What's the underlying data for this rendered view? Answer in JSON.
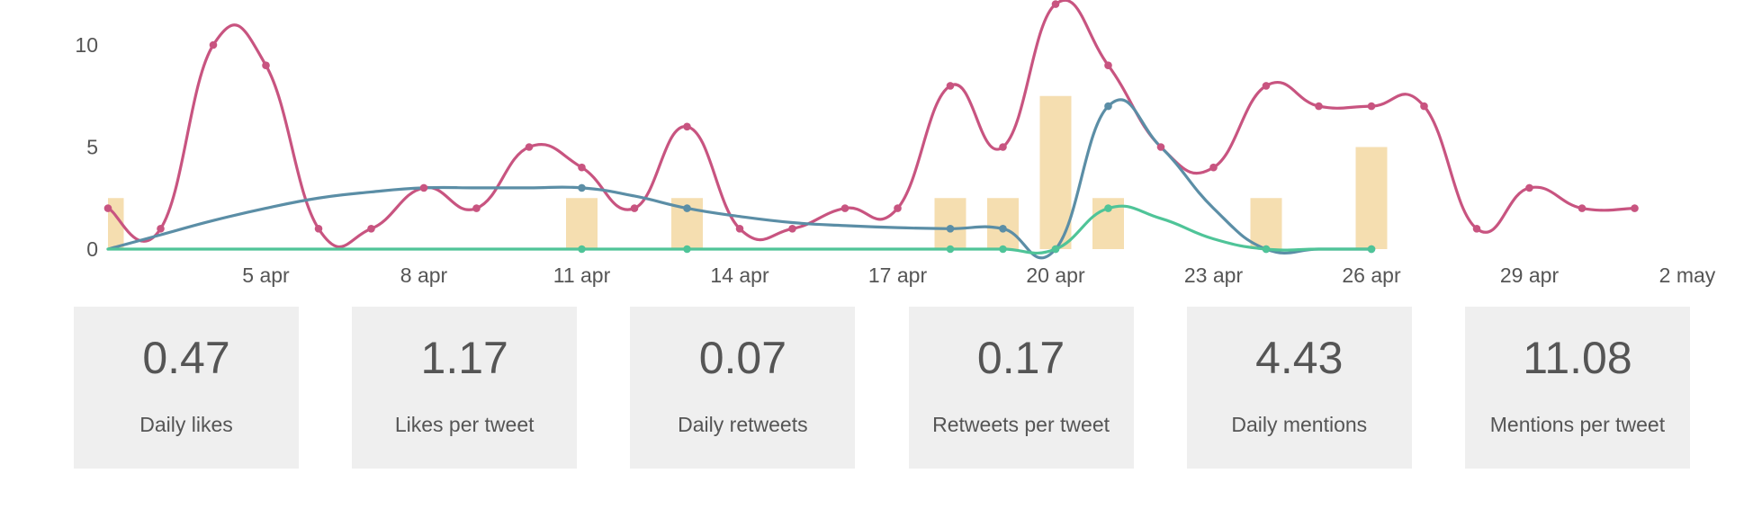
{
  "chart_data": {
    "type": "line",
    "x": [
      "2 apr",
      "3 apr",
      "4 apr",
      "5 apr",
      "6 apr",
      "7 apr",
      "8 apr",
      "9 apr",
      "10 apr",
      "11 apr",
      "12 apr",
      "13 apr",
      "14 apr",
      "15 apr",
      "16 apr",
      "17 apr",
      "18 apr",
      "19 apr",
      "20 apr",
      "21 apr",
      "22 apr",
      "23 apr",
      "24 apr",
      "25 apr",
      "26 apr",
      "27 apr",
      "28 apr",
      "29 apr",
      "30 apr",
      "1 may"
    ],
    "x_ticks": [
      "5 apr",
      "8 apr",
      "11 apr",
      "14 apr",
      "17 apr",
      "20 apr",
      "23 apr",
      "26 apr",
      "29 apr",
      "2 may"
    ],
    "y_ticks": [
      0,
      5,
      10
    ],
    "ylim": [
      0,
      12
    ],
    "grid": false,
    "legend": "none",
    "bars": {
      "color": "#f5deb0",
      "values": [
        2.5,
        0,
        0,
        0,
        0,
        0,
        0,
        0,
        0,
        2.5,
        0,
        2.5,
        0,
        0,
        0,
        0,
        2.5,
        2.5,
        7.5,
        2.5,
        0,
        0,
        2.5,
        0,
        5,
        0,
        0,
        0,
        0,
        0
      ]
    },
    "series": [
      {
        "color": "#c85480",
        "values": [
          2,
          1,
          10,
          9,
          1,
          1,
          3,
          2,
          5,
          4,
          2,
          6,
          1,
          1,
          2,
          2,
          8,
          5,
          12,
          9,
          5,
          4,
          8,
          7,
          7,
          7,
          1,
          3,
          2,
          2
        ],
        "markers": [
          0,
          1,
          2,
          3,
          4,
          5,
          6,
          7,
          8,
          9,
          10,
          11,
          12,
          13,
          14,
          15,
          16,
          17,
          18,
          19,
          20,
          21,
          22,
          23,
          24,
          25,
          26,
          27,
          28,
          29
        ]
      },
      {
        "color": "#5b8ea6",
        "values": [
          0,
          0.7,
          1.4,
          2.0,
          2.5,
          2.8,
          3.0,
          3.0,
          3.0,
          3.0,
          2.6,
          2.0,
          1.6,
          1.3,
          1.15,
          1.05,
          1,
          1,
          0,
          7,
          5,
          2,
          0,
          0,
          0,
          null,
          null,
          null,
          null,
          null
        ],
        "markers": [
          9,
          11,
          16,
          17,
          18,
          19,
          22,
          24
        ]
      },
      {
        "color": "#4fc498",
        "values": [
          0,
          0,
          0,
          0,
          0,
          0,
          0,
          0,
          0,
          0,
          0,
          0,
          0,
          0,
          0,
          0,
          0,
          0,
          0,
          2,
          1.5,
          0.5,
          0,
          0,
          0,
          null,
          null,
          null,
          null,
          null
        ],
        "markers": [
          9,
          11,
          16,
          17,
          18,
          19,
          22,
          24
        ]
      }
    ]
  },
  "stats": [
    {
      "value": "0.47",
      "label": "Daily likes"
    },
    {
      "value": "1.17",
      "label": "Likes per tweet"
    },
    {
      "value": "0.07",
      "label": "Daily retweets"
    },
    {
      "value": "0.17",
      "label": "Retweets per tweet"
    },
    {
      "value": "4.43",
      "label": "Daily mentions"
    },
    {
      "value": "11.08",
      "label": "Mentions per tweet"
    }
  ]
}
